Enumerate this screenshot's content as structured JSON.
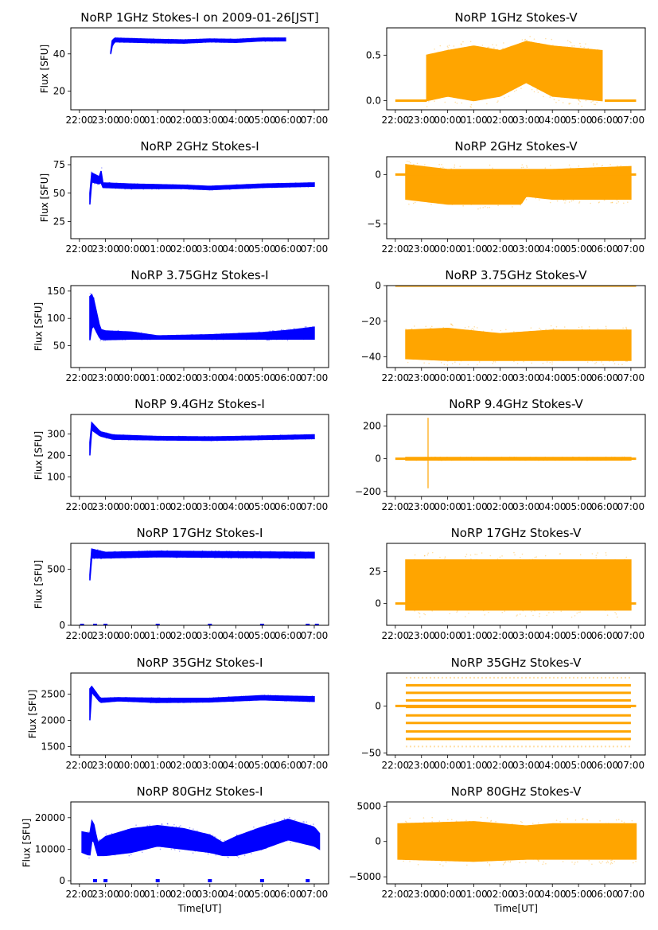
{
  "chart_data": [
    {
      "type": "scatter",
      "title": "NoRP 1GHz Stokes-I on 2009-01-26[JST]",
      "ylabel": "Flux [SFU]",
      "xlabel": "",
      "color": "#0000ff",
      "ylim": [
        10,
        54
      ],
      "yticks": [
        20,
        40
      ],
      "xlim": [
        -0.33,
        9.55
      ],
      "x_tick_labels": [
        "22:00",
        "23:00",
        "00:00",
        "01:00",
        "02:00",
        "03:00",
        "04:00",
        "05:00",
        "06:00",
        "07:00"
      ],
      "band": [
        [
          1.2,
          40,
          41
        ],
        [
          1.25,
          44,
          47
        ],
        [
          1.35,
          46.5,
          48.5
        ],
        [
          2,
          46.3,
          48.2
        ],
        [
          3,
          46,
          47.8
        ],
        [
          4,
          45.8,
          47.5
        ],
        [
          5,
          46.5,
          48
        ],
        [
          6,
          46.2,
          47.8
        ],
        [
          7,
          47,
          48.5
        ],
        [
          7.9,
          47,
          48.5
        ]
      ],
      "zero_marks": []
    },
    {
      "type": "scatter",
      "title": "NoRP 1GHz Stokes-V",
      "ylabel": "",
      "xlabel": "",
      "color": "#ffa500",
      "ylim": [
        -0.1,
        0.8
      ],
      "yticks": [
        0.0,
        0.5
      ],
      "ytick_labels": [
        "0.0",
        "0.5"
      ],
      "xlim": [
        -0.33,
        9.55
      ],
      "x_tick_labels": [
        "22:00",
        "23:00",
        "00:00",
        "01:00",
        "02:00",
        "03:00",
        "04:00",
        "05:00",
        "06:00",
        "07:00"
      ],
      "band": [
        [
          1.2,
          0.0,
          0.5
        ],
        [
          2,
          0.05,
          0.55
        ],
        [
          3,
          0.0,
          0.6
        ],
        [
          4,
          0.05,
          0.55
        ],
        [
          5,
          0.2,
          0.65
        ],
        [
          6,
          0.05,
          0.6
        ],
        [
          7.9,
          0.0,
          0.55
        ]
      ],
      "baseline": {
        "y": 0,
        "segments": [
          [
            0.0,
            1.2
          ],
          [
            8.0,
            9.2
          ]
        ]
      }
    },
    {
      "type": "scatter",
      "title": "NoRP 2GHz Stokes-I",
      "ylabel": "Flux [SFU]",
      "xlabel": "",
      "color": "#0000ff",
      "ylim": [
        10,
        82
      ],
      "yticks": [
        25,
        50,
        75
      ],
      "xlim": [
        -0.33,
        9.55
      ],
      "x_tick_labels": [
        "22:00",
        "23:00",
        "00:00",
        "01:00",
        "02:00",
        "03:00",
        "04:00",
        "05:00",
        "06:00",
        "07:00"
      ],
      "band": [
        [
          0.4,
          40,
          50
        ],
        [
          0.45,
          60,
          68
        ],
        [
          0.8,
          58,
          64
        ],
        [
          0.85,
          60,
          73
        ],
        [
          0.9,
          55,
          59
        ],
        [
          2,
          54,
          58
        ],
        [
          4,
          54,
          57
        ],
        [
          5,
          53,
          56
        ],
        [
          6,
          54,
          57
        ],
        [
          7,
          55,
          58
        ],
        [
          9.0,
          56,
          59
        ]
      ],
      "zero_marks": []
    },
    {
      "type": "scatter",
      "title": "NoRP 2GHz Stokes-V",
      "ylabel": "",
      "xlabel": "",
      "color": "#ffa500",
      "ylim": [
        -6.5,
        1.8
      ],
      "yticks": [
        -5,
        0
      ],
      "ytick_labels": [
        "−5",
        "0"
      ],
      "xlim": [
        -0.33,
        9.55
      ],
      "x_tick_labels": [
        "22:00",
        "23:00",
        "00:00",
        "01:00",
        "02:00",
        "03:00",
        "04:00",
        "05:00",
        "06:00",
        "07:00"
      ],
      "band": [
        [
          0.4,
          -2.5,
          1.0
        ],
        [
          2,
          -3.0,
          0.5
        ],
        [
          4.8,
          -3.0,
          0.5
        ],
        [
          5,
          -2.2,
          0.5
        ],
        [
          6,
          -2.5,
          0.5
        ],
        [
          9.0,
          -2.5,
          0.8
        ]
      ],
      "baseline": {
        "y": 0,
        "segments": [
          [
            0.0,
            9.2
          ]
        ]
      }
    },
    {
      "type": "scatter",
      "title": "NoRP 3.75GHz Stokes-I",
      "ylabel": "Flux [SFU]",
      "xlabel": "",
      "color": "#0000ff",
      "ylim": [
        10,
        160
      ],
      "yticks": [
        50,
        100,
        150
      ],
      "xlim": [
        -0.33,
        9.55
      ],
      "x_tick_labels": [
        "22:00",
        "23:00",
        "00:00",
        "01:00",
        "02:00",
        "03:00",
        "04:00",
        "05:00",
        "06:00",
        "07:00"
      ],
      "band": [
        [
          0.4,
          60,
          140
        ],
        [
          0.5,
          90,
          145
        ],
        [
          0.8,
          62,
          80
        ],
        [
          1,
          61,
          77
        ],
        [
          2,
          62,
          75
        ],
        [
          3,
          62,
          68
        ],
        [
          5,
          62,
          70
        ],
        [
          7,
          62,
          74
        ],
        [
          8,
          62,
          78
        ],
        [
          9.0,
          62,
          84
        ]
      ],
      "zero_marks": []
    },
    {
      "type": "scatter",
      "title": "NoRP 3.75GHz Stokes-V",
      "ylabel": "",
      "xlabel": "",
      "color": "#ffa500",
      "ylim": [
        -46,
        0
      ],
      "yticks": [
        -40,
        -20,
        0
      ],
      "ytick_labels": [
        "−40",
        "−20",
        "0"
      ],
      "xlim": [
        -0.33,
        9.55
      ],
      "x_tick_labels": [
        "22:00",
        "23:00",
        "00:00",
        "01:00",
        "02:00",
        "03:00",
        "04:00",
        "05:00",
        "06:00",
        "07:00"
      ],
      "band": [
        [
          0.4,
          -41,
          -25
        ],
        [
          2,
          -42,
          -24
        ],
        [
          4,
          -42,
          -27
        ],
        [
          6,
          -42,
          -25
        ],
        [
          9.0,
          -42,
          -25
        ]
      ],
      "baseline": {
        "y": 0,
        "segments": [
          [
            0.0,
            9.2
          ]
        ]
      }
    },
    {
      "type": "scatter",
      "title": "NoRP 9.4GHz Stokes-I",
      "ylabel": "Flux [SFU]",
      "xlabel": "",
      "color": "#0000ff",
      "ylim": [
        10,
        390
      ],
      "yticks": [
        100,
        200,
        300
      ],
      "xlim": [
        -0.33,
        9.55
      ],
      "x_tick_labels": [
        "22:00",
        "23:00",
        "00:00",
        "01:00",
        "02:00",
        "03:00",
        "04:00",
        "05:00",
        "06:00",
        "07:00"
      ],
      "band": [
        [
          0.4,
          200,
          260
        ],
        [
          0.45,
          320,
          355
        ],
        [
          0.8,
          290,
          310
        ],
        [
          1.3,
          275,
          295
        ],
        [
          3,
          272,
          288
        ],
        [
          5,
          270,
          286
        ],
        [
          7,
          274,
          290
        ],
        [
          9.0,
          278,
          296
        ]
      ],
      "zero_marks": []
    },
    {
      "type": "scatter",
      "title": "NoRP 9.4GHz Stokes-V",
      "ylabel": "",
      "xlabel": "",
      "color": "#ffa500",
      "ylim": [
        -230,
        270
      ],
      "yticks": [
        -200,
        0,
        200
      ],
      "ytick_labels": [
        "−200",
        "0",
        "200"
      ],
      "xlim": [
        -0.33,
        9.55
      ],
      "x_tick_labels": [
        "22:00",
        "23:00",
        "00:00",
        "01:00",
        "02:00",
        "03:00",
        "04:00",
        "05:00",
        "06:00",
        "07:00"
      ],
      "band": [
        [
          0.4,
          -8,
          8
        ],
        [
          9.0,
          -8,
          8
        ]
      ],
      "baseline": {
        "y": 0,
        "segments": [
          [
            0.0,
            9.2
          ]
        ]
      },
      "spike": {
        "x": 1.25,
        "ymin": -180,
        "ymax": 250
      }
    },
    {
      "type": "scatter",
      "title": "NoRP 17GHz Stokes-I",
      "ylabel": "Flux [SFU]",
      "xlabel": "",
      "color": "#0000ff",
      "ylim": [
        0,
        730
      ],
      "yticks": [
        0,
        500
      ],
      "xlim": [
        -0.33,
        9.55
      ],
      "x_tick_labels": [
        "22:00",
        "23:00",
        "00:00",
        "01:00",
        "02:00",
        "03:00",
        "04:00",
        "05:00",
        "06:00",
        "07:00"
      ],
      "band": [
        [
          0.4,
          400,
          450
        ],
        [
          0.45,
          600,
          680
        ],
        [
          1,
          600,
          650
        ],
        [
          3,
          610,
          660
        ],
        [
          6,
          605,
          655
        ],
        [
          9.0,
          600,
          650
        ]
      ],
      "zero_marks": [
        0.1,
        0.6,
        1.0,
        3.0,
        5.0,
        7.0,
        8.75,
        9.1
      ]
    },
    {
      "type": "scatter",
      "title": "NoRP 17GHz Stokes-V",
      "ylabel": "",
      "xlabel": "",
      "color": "#ffa500",
      "ylim": [
        -17,
        47
      ],
      "yticks": [
        0,
        25
      ],
      "ytick_labels": [
        "0",
        "25"
      ],
      "xlim": [
        -0.33,
        9.55
      ],
      "x_tick_labels": [
        "22:00",
        "23:00",
        "00:00",
        "01:00",
        "02:00",
        "03:00",
        "04:00",
        "05:00",
        "06:00",
        "07:00"
      ],
      "band": [
        [
          0.4,
          -5,
          34
        ],
        [
          9.0,
          -5,
          34
        ]
      ],
      "baseline": {
        "y": 0,
        "segments": [
          [
            0.0,
            9.2
          ]
        ]
      }
    },
    {
      "type": "scatter",
      "title": "NoRP 35GHz Stokes-I",
      "ylabel": "Flux [SFU]",
      "xlabel": "",
      "color": "#0000ff",
      "ylim": [
        1340,
        2900
      ],
      "yticks": [
        1500,
        2000,
        2500
      ],
      "xlim": [
        -0.33,
        9.55
      ],
      "x_tick_labels": [
        "22:00",
        "23:00",
        "00:00",
        "01:00",
        "02:00",
        "03:00",
        "04:00",
        "05:00",
        "06:00",
        "07:00"
      ],
      "band": [
        [
          0.4,
          2000,
          2600
        ],
        [
          0.45,
          2550,
          2660
        ],
        [
          0.8,
          2340,
          2420
        ],
        [
          1.5,
          2370,
          2430
        ],
        [
          3,
          2340,
          2420
        ],
        [
          5,
          2350,
          2420
        ],
        [
          7,
          2390,
          2470
        ],
        [
          9.0,
          2360,
          2450
        ]
      ],
      "zero_marks": []
    },
    {
      "type": "scatter",
      "title": "NoRP 35GHz Stokes-V",
      "ylabel": "",
      "xlabel": "",
      "color": "#ffa500",
      "ylim": [
        -52,
        35
      ],
      "yticks": [
        -50,
        0
      ],
      "ytick_labels": [
        "−50",
        "0"
      ],
      "xlim": [
        -0.33,
        9.55
      ],
      "x_tick_labels": [
        "22:00",
        "23:00",
        "00:00",
        "01:00",
        "02:00",
        "03:00",
        "04:00",
        "05:00",
        "06:00",
        "07:00"
      ],
      "levels": [
        22,
        14,
        6,
        -1,
        -10,
        -18,
        -27,
        -35
      ],
      "faint_levels": [
        30,
        -43
      ],
      "level_range": [
        0.4,
        9.0
      ],
      "baseline": {
        "y": 0,
        "segments": [
          [
            0.0,
            9.2
          ]
        ]
      }
    },
    {
      "type": "scatter",
      "title": "NoRP 80GHz Stokes-I",
      "ylabel": "Flux [SFU]",
      "xlabel": "Time[UT]",
      "color": "#0000ff",
      "ylim": [
        -1000,
        25000
      ],
      "yticks": [
        0,
        10000,
        20000
      ],
      "xlim": [
        -0.33,
        9.55
      ],
      "x_tick_labels": [
        "22:00",
        "23:00",
        "00:00",
        "01:00",
        "02:00",
        "03:00",
        "04:00",
        "05:00",
        "06:00",
        "07:00"
      ],
      "band": [
        [
          0.1,
          9000,
          15500
        ],
        [
          0.4,
          8000,
          15000
        ],
        [
          0.5,
          14000,
          20000
        ],
        [
          0.7,
          8000,
          12000
        ],
        [
          1,
          8000,
          14000
        ],
        [
          2,
          9000,
          16500
        ],
        [
          3,
          11000,
          17500
        ],
        [
          4,
          10000,
          16500
        ],
        [
          5,
          9000,
          14500
        ],
        [
          5.5,
          8000,
          12000
        ],
        [
          6,
          8000,
          14000
        ],
        [
          7,
          10000,
          17000
        ],
        [
          8,
          13000,
          19500
        ],
        [
          9.0,
          11000,
          17000
        ],
        [
          9.2,
          10000,
          15000
        ]
      ],
      "zero_marks": [
        0.6,
        1.0,
        3.0,
        5.0,
        7.0,
        8.75
      ]
    },
    {
      "type": "scatter",
      "title": "NoRP 80GHz Stokes-V",
      "ylabel": "",
      "xlabel": "Time[UT]",
      "color": "#ffa500",
      "ylim": [
        -6000,
        5600
      ],
      "yticks": [
        -5000,
        0,
        5000
      ],
      "ytick_labels": [
        "−5000",
        "0",
        "5000"
      ],
      "xlim": [
        -0.33,
        9.55
      ],
      "x_tick_labels": [
        "22:00",
        "23:00",
        "00:00",
        "01:00",
        "02:00",
        "03:00",
        "04:00",
        "05:00",
        "06:00",
        "07:00"
      ],
      "band": [
        [
          0.1,
          -2500,
          2500
        ],
        [
          3,
          -2800,
          2800
        ],
        [
          5,
          -2500,
          2200
        ],
        [
          6,
          -2500,
          2500
        ],
        [
          9.2,
          -2500,
          2500
        ]
      ],
      "baseline": null
    }
  ]
}
